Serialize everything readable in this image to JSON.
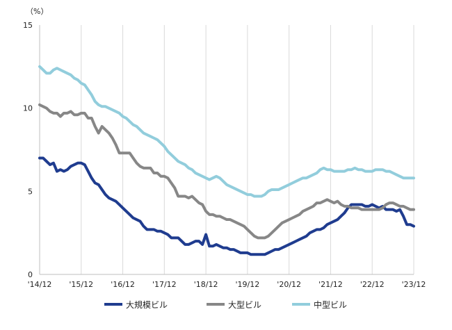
{
  "chart_data": {
    "type": "line",
    "unit_label": "（%）",
    "ylim": [
      0,
      15
    ],
    "yticks": [
      0,
      5,
      10,
      15
    ],
    "ytick_labels": [
      "0",
      "5",
      "10",
      "15"
    ],
    "xlim": [
      0,
      108
    ],
    "xticks": [
      0,
      12,
      24,
      36,
      48,
      60,
      72,
      84,
      96,
      108
    ],
    "xtick_labels": [
      "'14/12",
      "'15/12",
      "'16/12",
      "'17/12",
      "'18/12",
      "'19/12",
      "'20/12",
      "'21/12",
      "'22/12",
      "'23/12"
    ],
    "grid": "vertical",
    "legend": "bottom",
    "series": [
      {
        "name": "大規模ビル",
        "color": "#1f3c8f",
        "points": [
          [
            0,
            7.0
          ],
          [
            1,
            7.0
          ],
          [
            2,
            6.8
          ],
          [
            3,
            6.6
          ],
          [
            4,
            6.7
          ],
          [
            5,
            6.2
          ],
          [
            6,
            6.3
          ],
          [
            7,
            6.2
          ],
          [
            8,
            6.3
          ],
          [
            9,
            6.5
          ],
          [
            10,
            6.6
          ],
          [
            11,
            6.7
          ],
          [
            12,
            6.7
          ],
          [
            13,
            6.6
          ],
          [
            14,
            6.2
          ],
          [
            15,
            5.8
          ],
          [
            16,
            5.5
          ],
          [
            17,
            5.4
          ],
          [
            18,
            5.1
          ],
          [
            19,
            4.8
          ],
          [
            20,
            4.6
          ],
          [
            21,
            4.5
          ],
          [
            22,
            4.4
          ],
          [
            23,
            4.2
          ],
          [
            24,
            4.0
          ],
          [
            25,
            3.8
          ],
          [
            26,
            3.6
          ],
          [
            27,
            3.4
          ],
          [
            28,
            3.3
          ],
          [
            29,
            3.2
          ],
          [
            30,
            2.9
          ],
          [
            31,
            2.7
          ],
          [
            32,
            2.7
          ],
          [
            33,
            2.7
          ],
          [
            34,
            2.6
          ],
          [
            35,
            2.6
          ],
          [
            36,
            2.5
          ],
          [
            37,
            2.4
          ],
          [
            38,
            2.2
          ],
          [
            39,
            2.2
          ],
          [
            40,
            2.2
          ],
          [
            41,
            2.0
          ],
          [
            42,
            1.8
          ],
          [
            43,
            1.8
          ],
          [
            44,
            1.9
          ],
          [
            45,
            2.0
          ],
          [
            46,
            2.0
          ],
          [
            47,
            1.8
          ],
          [
            48,
            2.4
          ],
          [
            49,
            1.7
          ],
          [
            50,
            1.7
          ],
          [
            51,
            1.8
          ],
          [
            52,
            1.7
          ],
          [
            53,
            1.6
          ],
          [
            54,
            1.6
          ],
          [
            55,
            1.5
          ],
          [
            56,
            1.5
          ],
          [
            57,
            1.4
          ],
          [
            58,
            1.3
          ],
          [
            59,
            1.3
          ],
          [
            60,
            1.3
          ],
          [
            61,
            1.2
          ],
          [
            62,
            1.2
          ],
          [
            63,
            1.2
          ],
          [
            64,
            1.2
          ],
          [
            65,
            1.2
          ],
          [
            66,
            1.3
          ],
          [
            67,
            1.4
          ],
          [
            68,
            1.5
          ],
          [
            69,
            1.5
          ],
          [
            70,
            1.6
          ],
          [
            71,
            1.7
          ],
          [
            72,
            1.8
          ],
          [
            73,
            1.9
          ],
          [
            74,
            2.0
          ],
          [
            75,
            2.1
          ],
          [
            76,
            2.2
          ],
          [
            77,
            2.3
          ],
          [
            78,
            2.5
          ],
          [
            79,
            2.6
          ],
          [
            80,
            2.7
          ],
          [
            81,
            2.7
          ],
          [
            82,
            2.8
          ],
          [
            83,
            3.0
          ],
          [
            84,
            3.1
          ],
          [
            85,
            3.2
          ],
          [
            86,
            3.3
          ],
          [
            87,
            3.5
          ],
          [
            88,
            3.7
          ],
          [
            89,
            4.0
          ],
          [
            90,
            4.2
          ],
          [
            91,
            4.2
          ],
          [
            92,
            4.2
          ],
          [
            93,
            4.2
          ],
          [
            94,
            4.1
          ],
          [
            95,
            4.1
          ],
          [
            96,
            4.2
          ],
          [
            97,
            4.1
          ],
          [
            98,
            4.0
          ],
          [
            99,
            4.1
          ],
          [
            100,
            3.9
          ],
          [
            101,
            3.9
          ],
          [
            102,
            3.9
          ],
          [
            103,
            3.8
          ],
          [
            104,
            3.9
          ],
          [
            105,
            3.5
          ],
          [
            106,
            3.0
          ],
          [
            107,
            3.0
          ],
          [
            108,
            2.9
          ]
        ]
      },
      {
        "name": "大型ビル",
        "color": "#878787",
        "points": [
          [
            0,
            10.2
          ],
          [
            1,
            10.1
          ],
          [
            2,
            10.0
          ],
          [
            3,
            9.8
          ],
          [
            4,
            9.7
          ],
          [
            5,
            9.7
          ],
          [
            6,
            9.5
          ],
          [
            7,
            9.7
          ],
          [
            8,
            9.7
          ],
          [
            9,
            9.8
          ],
          [
            10,
            9.6
          ],
          [
            11,
            9.6
          ],
          [
            12,
            9.7
          ],
          [
            13,
            9.7
          ],
          [
            14,
            9.4
          ],
          [
            15,
            9.4
          ],
          [
            16,
            8.9
          ],
          [
            17,
            8.5
          ],
          [
            18,
            8.9
          ],
          [
            19,
            8.7
          ],
          [
            20,
            8.5
          ],
          [
            21,
            8.2
          ],
          [
            22,
            7.8
          ],
          [
            23,
            7.3
          ],
          [
            24,
            7.3
          ],
          [
            25,
            7.3
          ],
          [
            26,
            7.3
          ],
          [
            27,
            7.0
          ],
          [
            28,
            6.7
          ],
          [
            29,
            6.5
          ],
          [
            30,
            6.4
          ],
          [
            31,
            6.4
          ],
          [
            32,
            6.4
          ],
          [
            33,
            6.1
          ],
          [
            34,
            6.1
          ],
          [
            35,
            5.9
          ],
          [
            36,
            5.9
          ],
          [
            37,
            5.8
          ],
          [
            38,
            5.5
          ],
          [
            39,
            5.2
          ],
          [
            40,
            4.7
          ],
          [
            41,
            4.7
          ],
          [
            42,
            4.7
          ],
          [
            43,
            4.6
          ],
          [
            44,
            4.7
          ],
          [
            45,
            4.5
          ],
          [
            46,
            4.3
          ],
          [
            47,
            4.2
          ],
          [
            48,
            3.8
          ],
          [
            49,
            3.6
          ],
          [
            50,
            3.6
          ],
          [
            51,
            3.5
          ],
          [
            52,
            3.5
          ],
          [
            53,
            3.4
          ],
          [
            54,
            3.3
          ],
          [
            55,
            3.3
          ],
          [
            56,
            3.2
          ],
          [
            57,
            3.1
          ],
          [
            58,
            3.0
          ],
          [
            59,
            2.9
          ],
          [
            60,
            2.7
          ],
          [
            61,
            2.5
          ],
          [
            62,
            2.3
          ],
          [
            63,
            2.2
          ],
          [
            64,
            2.2
          ],
          [
            65,
            2.2
          ],
          [
            66,
            2.3
          ],
          [
            67,
            2.5
          ],
          [
            68,
            2.7
          ],
          [
            69,
            2.9
          ],
          [
            70,
            3.1
          ],
          [
            71,
            3.2
          ],
          [
            72,
            3.3
          ],
          [
            73,
            3.4
          ],
          [
            74,
            3.5
          ],
          [
            75,
            3.6
          ],
          [
            76,
            3.8
          ],
          [
            77,
            3.9
          ],
          [
            78,
            4.0
          ],
          [
            79,
            4.1
          ],
          [
            80,
            4.3
          ],
          [
            81,
            4.3
          ],
          [
            82,
            4.4
          ],
          [
            83,
            4.5
          ],
          [
            84,
            4.4
          ],
          [
            85,
            4.3
          ],
          [
            86,
            4.4
          ],
          [
            87,
            4.2
          ],
          [
            88,
            4.1
          ],
          [
            89,
            4.1
          ],
          [
            90,
            4.0
          ],
          [
            91,
            4.0
          ],
          [
            92,
            4.0
          ],
          [
            93,
            3.9
          ],
          [
            94,
            3.9
          ],
          [
            95,
            3.9
          ],
          [
            96,
            3.9
          ],
          [
            97,
            3.9
          ],
          [
            98,
            3.9
          ],
          [
            99,
            4.0
          ],
          [
            100,
            4.2
          ],
          [
            101,
            4.3
          ],
          [
            102,
            4.3
          ],
          [
            103,
            4.2
          ],
          [
            104,
            4.1
          ],
          [
            105,
            4.1
          ],
          [
            106,
            4.0
          ],
          [
            107,
            3.9
          ],
          [
            108,
            3.9
          ]
        ]
      },
      {
        "name": "中型ビル",
        "color": "#92cddc",
        "points": [
          [
            0,
            12.5
          ],
          [
            1,
            12.3
          ],
          [
            2,
            12.1
          ],
          [
            3,
            12.1
          ],
          [
            4,
            12.3
          ],
          [
            5,
            12.4
          ],
          [
            6,
            12.3
          ],
          [
            7,
            12.2
          ],
          [
            8,
            12.1
          ],
          [
            9,
            12.0
          ],
          [
            10,
            11.8
          ],
          [
            11,
            11.7
          ],
          [
            12,
            11.5
          ],
          [
            13,
            11.4
          ],
          [
            14,
            11.1
          ],
          [
            15,
            10.8
          ],
          [
            16,
            10.4
          ],
          [
            17,
            10.2
          ],
          [
            18,
            10.1
          ],
          [
            19,
            10.1
          ],
          [
            20,
            10.0
          ],
          [
            21,
            9.9
          ],
          [
            22,
            9.8
          ],
          [
            23,
            9.7
          ],
          [
            24,
            9.5
          ],
          [
            25,
            9.4
          ],
          [
            26,
            9.2
          ],
          [
            27,
            9.0
          ],
          [
            28,
            8.9
          ],
          [
            29,
            8.7
          ],
          [
            30,
            8.5
          ],
          [
            31,
            8.4
          ],
          [
            32,
            8.3
          ],
          [
            33,
            8.2
          ],
          [
            34,
            8.1
          ],
          [
            35,
            7.9
          ],
          [
            36,
            7.7
          ],
          [
            37,
            7.4
          ],
          [
            38,
            7.2
          ],
          [
            39,
            7.0
          ],
          [
            40,
            6.8
          ],
          [
            41,
            6.7
          ],
          [
            42,
            6.6
          ],
          [
            43,
            6.4
          ],
          [
            44,
            6.3
          ],
          [
            45,
            6.1
          ],
          [
            46,
            6.0
          ],
          [
            47,
            5.9
          ],
          [
            48,
            5.8
          ],
          [
            49,
            5.7
          ],
          [
            50,
            5.8
          ],
          [
            51,
            5.9
          ],
          [
            52,
            5.8
          ],
          [
            53,
            5.6
          ],
          [
            54,
            5.4
          ],
          [
            55,
            5.3
          ],
          [
            56,
            5.2
          ],
          [
            57,
            5.1
          ],
          [
            58,
            5.0
          ],
          [
            59,
            4.9
          ],
          [
            60,
            4.8
          ],
          [
            61,
            4.8
          ],
          [
            62,
            4.7
          ],
          [
            63,
            4.7
          ],
          [
            64,
            4.7
          ],
          [
            65,
            4.8
          ],
          [
            66,
            5.0
          ],
          [
            67,
            5.1
          ],
          [
            68,
            5.1
          ],
          [
            69,
            5.1
          ],
          [
            70,
            5.2
          ],
          [
            71,
            5.3
          ],
          [
            72,
            5.4
          ],
          [
            73,
            5.5
          ],
          [
            74,
            5.6
          ],
          [
            75,
            5.7
          ],
          [
            76,
            5.8
          ],
          [
            77,
            5.8
          ],
          [
            78,
            5.9
          ],
          [
            79,
            6.0
          ],
          [
            80,
            6.1
          ],
          [
            81,
            6.3
          ],
          [
            82,
            6.4
          ],
          [
            83,
            6.3
          ],
          [
            84,
            6.3
          ],
          [
            85,
            6.2
          ],
          [
            86,
            6.2
          ],
          [
            87,
            6.2
          ],
          [
            88,
            6.2
          ],
          [
            89,
            6.3
          ],
          [
            90,
            6.3
          ],
          [
            91,
            6.4
          ],
          [
            92,
            6.3
          ],
          [
            93,
            6.3
          ],
          [
            94,
            6.2
          ],
          [
            95,
            6.2
          ],
          [
            96,
            6.2
          ],
          [
            97,
            6.3
          ],
          [
            98,
            6.3
          ],
          [
            99,
            6.3
          ],
          [
            100,
            6.2
          ],
          [
            101,
            6.2
          ],
          [
            102,
            6.1
          ],
          [
            103,
            6.0
          ],
          [
            104,
            5.9
          ],
          [
            105,
            5.8
          ],
          [
            106,
            5.8
          ],
          [
            107,
            5.8
          ],
          [
            108,
            5.8
          ]
        ]
      }
    ]
  }
}
